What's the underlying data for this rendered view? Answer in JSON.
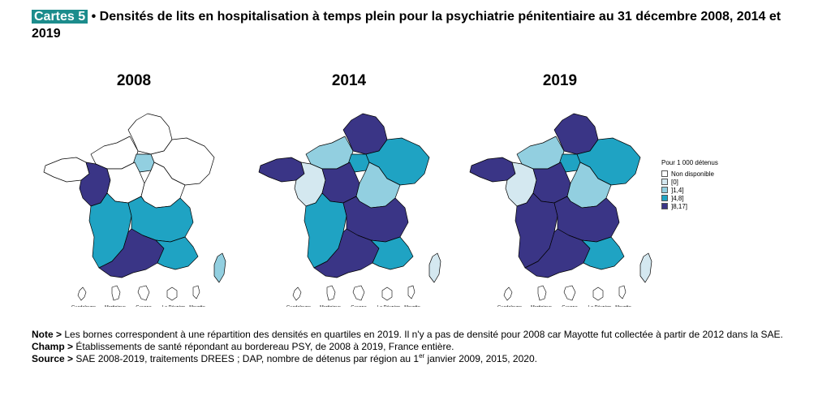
{
  "header": {
    "badge": "Cartes 5",
    "title": " • Densités de lits en hospitalisation à temps plein pour la psychiatrie pénitentiaire au 31 décembre 2008, 2014 et 2019"
  },
  "legend": {
    "title": "Pour 1 000 détenus",
    "classes": [
      {
        "label": "Non disponible",
        "color": "#ffffff"
      },
      {
        "label": "[0]",
        "color": "#d4e8f0"
      },
      {
        "label": "]1,4]",
        "color": "#92cfe0"
      },
      {
        "label": "]4,8]",
        "color": "#1fa3c3"
      },
      {
        "label": "]8,17]",
        "color": "#3a3586"
      }
    ]
  },
  "maps": [
    {
      "year": "2008",
      "regions": {
        "HDF": "c0",
        "NOR": "c0",
        "IDF": "c2",
        "GE": "c0",
        "BRE": "c0",
        "PDL": "c4",
        "CVL": "c0",
        "BFC": "c0",
        "NAQ": "c3",
        "ARA": "c3",
        "OCC": "c4",
        "PACA": "c3",
        "COR": "c2"
      },
      "overseas": {
        "GUA": "c0",
        "MAR": "c0",
        "GUY": "c0",
        "REU": "c0",
        "MAY": "c0"
      }
    },
    {
      "year": "2014",
      "regions": {
        "HDF": "c4",
        "NOR": "c2",
        "IDF": "c3",
        "GE": "c3",
        "BRE": "c4",
        "PDL": "c1",
        "CVL": "c4",
        "BFC": "c2",
        "NAQ": "c3",
        "ARA": "c4",
        "OCC": "c4",
        "PACA": "c3",
        "COR": "c1"
      },
      "overseas": {
        "GUA": "c0",
        "MAR": "c0",
        "GUY": "c0",
        "REU": "c0",
        "MAY": "c0"
      }
    },
    {
      "year": "2019",
      "regions": {
        "HDF": "c4",
        "NOR": "c2",
        "IDF": "c3",
        "GE": "c3",
        "BRE": "c4",
        "PDL": "c1",
        "CVL": "c4",
        "BFC": "c2",
        "NAQ": "c4",
        "ARA": "c4",
        "OCC": "c4",
        "PACA": "c3",
        "COR": "c1"
      },
      "overseas": {
        "GUA": "c0",
        "MAR": "c0",
        "GUY": "c0",
        "REU": "c0",
        "MAY": "c0"
      }
    }
  ],
  "overseas_labels": {
    "GUA": "Guadeloupe",
    "MAR": "Martinique",
    "GUY": "Guyane",
    "REU": "La Réunion",
    "MAY": "Mayotte"
  },
  "notes": {
    "note_label": "Note >",
    "note_text": " Les bornes correspondent à une répartition des densités en quartiles en 2019. Il n'y a pas de densité pour 2008 car Mayotte fut collectée à partir de 2012 dans la SAE.",
    "champ_label": "Champ >",
    "champ_text": " Établissements de santé répondant au bordereau PSY, de 2008 à 2019, France entière.",
    "source_label": "Source >",
    "source_text_a": " SAE 2008-2019, traitements DREES ; DAP, nombre de détenus par région au 1",
    "source_sup": "er",
    "source_text_b": " janvier 2009, 2015, 2020."
  }
}
